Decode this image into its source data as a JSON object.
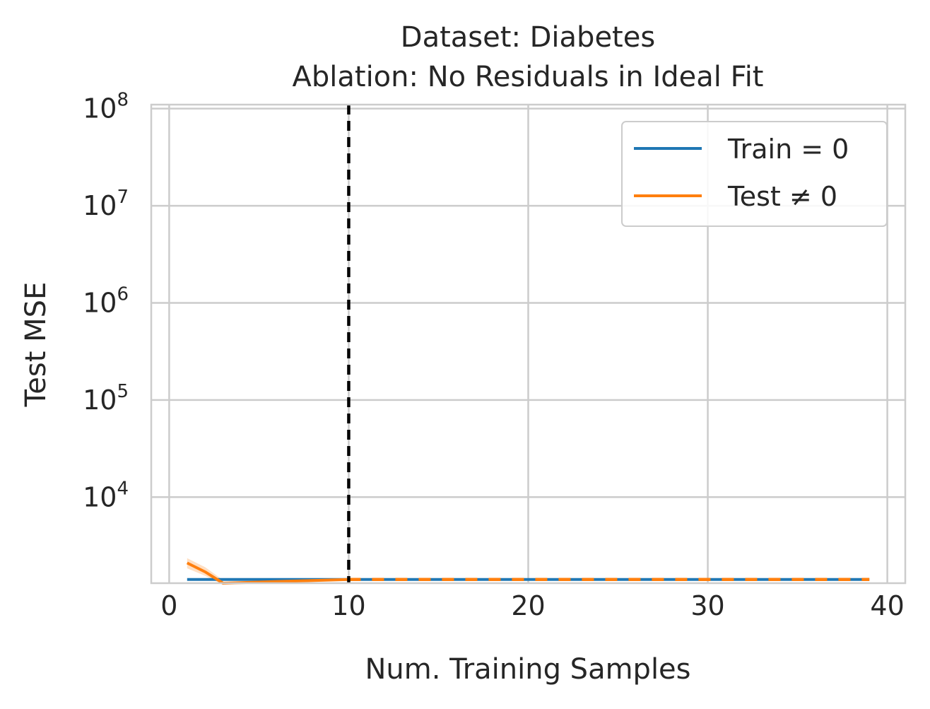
{
  "chart_data": {
    "type": "line",
    "title": "Dataset: Diabetes",
    "subtitle": "Ablation: No Residuals in Ideal Fit",
    "xlabel": "Num. Training Samples",
    "ylabel": "Test MSE",
    "xlim": [
      -1,
      41
    ],
    "ylim": [
      1300,
      110000000
    ],
    "yscale": "log",
    "grid": true,
    "xticks": [
      "0",
      "10",
      "20",
      "30",
      "40"
    ],
    "yticks": [
      {
        "base": "10",
        "exp": "4",
        "value": 10000
      },
      {
        "base": "10",
        "exp": "5",
        "value": 100000
      },
      {
        "base": "10",
        "exp": "6",
        "value": 1000000
      },
      {
        "base": "10",
        "exp": "7",
        "value": 10000000
      },
      {
        "base": "10",
        "exp": "8",
        "value": 100000000
      }
    ],
    "vline": {
      "x": 10,
      "style": "dashed",
      "color": "#000000"
    },
    "legend": {
      "placement": "top-right"
    },
    "series": [
      {
        "name": "Train = 0",
        "color": "#1f77b4",
        "style": "solid",
        "x": [
          1,
          39
        ],
        "y": [
          1420,
          1420
        ]
      },
      {
        "name": "Test ≠ 0",
        "color": "#ff7f0e",
        "style": "solid-then-dashed",
        "x": [
          1,
          2,
          3,
          10,
          39
        ],
        "y": [
          2100,
          1700,
          1300,
          1420,
          1420
        ],
        "band": {
          "x": [
            1,
            2,
            3
          ],
          "lower": [
            1850,
            1550,
            1250
          ],
          "upper": [
            2350,
            1900,
            1400
          ]
        }
      }
    ]
  }
}
